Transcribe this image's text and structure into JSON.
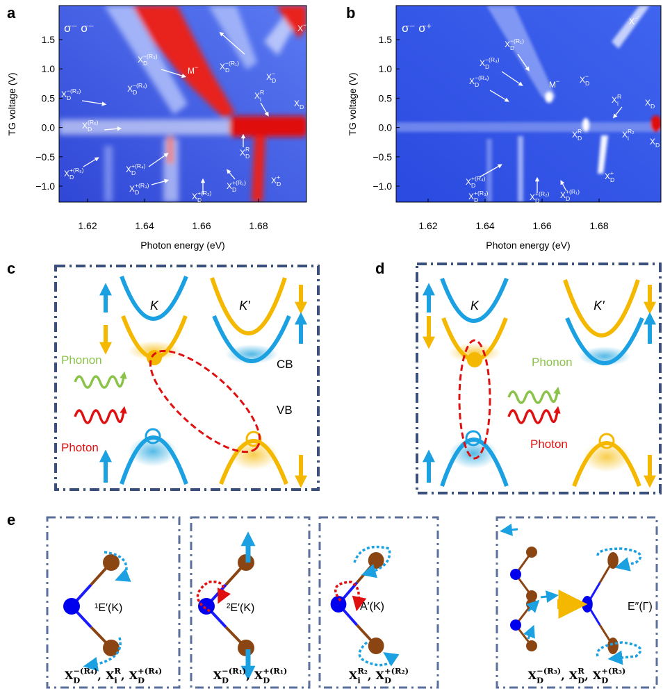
{
  "panels": {
    "a": {
      "letter": "a",
      "polarization": "σ⁻ σ⁻",
      "y_axis_title": "TG voltage (V)",
      "x_axis_title": "Photon energy (eV)",
      "x_ticks": [
        "1.62",
        "1.64",
        "1.66",
        "1.68"
      ],
      "y_ticks": [
        "1.5",
        "1.0",
        "0.5",
        "0.0",
        "−0.5",
        "−1.0"
      ],
      "labels": [
        {
          "base": "X",
          "sup": "−′"
        },
        {
          "base": "X",
          "sub": "D",
          "sup": "−(R₃)"
        },
        {
          "base": "M",
          "sup": "−"
        },
        {
          "base": "X",
          "sub": "D",
          "sup": "−(R₁)"
        },
        {
          "base": "X",
          "sub": "D",
          "sup": "−"
        },
        {
          "base": "X",
          "sub": "D",
          "sup": "−(R₄)"
        },
        {
          "base": "X",
          "sub": "D",
          "sup": "−(R₂)"
        },
        {
          "base": "X",
          "sub": "i",
          "sup": "R"
        },
        {
          "base": "X",
          "sub": "D"
        },
        {
          "base": "X",
          "sub": "D",
          "sup": "(R₅)"
        },
        {
          "base": "X",
          "sub": "D",
          "sup": "R"
        },
        {
          "base": "X",
          "sub": "D",
          "sup": "+(R₅)"
        },
        {
          "base": "X",
          "sub": "D",
          "sup": "+(R₄)"
        },
        {
          "base": "X",
          "sub": "D",
          "sup": "+(R₃)"
        },
        {
          "base": "X",
          "sub": "D",
          "sup": "+(R₂)"
        },
        {
          "base": "X",
          "sub": "D",
          "sup": "+(R₁)"
        },
        {
          "base": "X",
          "sub": "D",
          "sup": "+"
        }
      ]
    },
    "b": {
      "letter": "b",
      "polarization": "σ⁻ σ⁺",
      "y_axis_title": "TG voltage (V)",
      "x_axis_title": "Photon energy (eV)",
      "x_ticks": [
        "1.62",
        "1.64",
        "1.66",
        "1.68"
      ],
      "y_ticks": [
        "1.5",
        "1.0",
        "0.5",
        "0.0",
        "−0.5",
        "−1.0"
      ],
      "labels": [
        {
          "base": "X",
          "sup": "−′"
        },
        {
          "base": "X",
          "sub": "D",
          "sup": "−(R₁)"
        },
        {
          "base": "X",
          "sub": "D",
          "sup": "−(R₃)"
        },
        {
          "base": "X",
          "sub": "D",
          "sup": "−(R₄)"
        },
        {
          "base": "M",
          "sup": "−"
        },
        {
          "base": "X",
          "sub": "D",
          "sup": "−"
        },
        {
          "base": "X",
          "sub": "i",
          "sup": "R"
        },
        {
          "base": "X",
          "sub": "D"
        },
        {
          "base": "X",
          "sub": "D",
          "sup": "R"
        },
        {
          "base": "X",
          "sub": "i",
          "sup": "R₂"
        },
        {
          "base": "X",
          "sub": "D"
        },
        {
          "base": "X",
          "sub": "D",
          "sup": "+(R₄)"
        },
        {
          "base": "X",
          "sub": "D",
          "sup": "+"
        },
        {
          "base": "X",
          "sub": "D",
          "sup": "+(R₃)"
        },
        {
          "base": "X",
          "sub": "D",
          "sup": "+(R₂)"
        },
        {
          "base": "X",
          "sub": "D",
          "sup": "+(R₁)"
        }
      ]
    },
    "c": {
      "letter": "c",
      "valley_K": "K",
      "valley_K_prime": "K′",
      "phonon": "Phonon",
      "photon": "Photon",
      "conduction_band": "CB",
      "valence_band": "VB"
    },
    "d": {
      "letter": "d",
      "valley_K": "K",
      "valley_K_prime": "K′",
      "phonon": "Phonon",
      "photon": "Photon"
    },
    "e": {
      "letter": "e",
      "modes": [
        {
          "name": "¹E′(K)",
          "assignment": [
            {
              "base": "X",
              "sub": "D",
              "sup": "−(R₄)",
              "after": ","
            },
            {
              "base": "X",
              "sub": "i",
              "sup": "R",
              "after": ","
            },
            {
              "base": "X",
              "sub": "D",
              "sup": "+(R₄)"
            }
          ]
        },
        {
          "name": "²E′(K)",
          "assignment": [
            {
              "base": "X",
              "sub": "D",
              "sup": "−(R₁)",
              "after": ","
            },
            {
              "base": "X",
              "sub": "D",
              "sup": "+(R₁)"
            }
          ]
        },
        {
          "name": "A′(K)",
          "assignment": [
            {
              "base": "X",
              "sub": "i",
              "sup": "R₂",
              "after": ","
            },
            {
              "base": "X",
              "sub": "D",
              "sup": "+(R₂)"
            }
          ]
        },
        {
          "name": "E″(Γ)",
          "assignment": [
            {
              "base": "X",
              "sub": "D",
              "sup": "−(R₃)",
              "after": ","
            },
            {
              "base": "X",
              "sub": "D",
              "sup": "R",
              "after": ","
            },
            {
              "base": "X",
              "sub": "D",
              "sup": "+(R₃)"
            }
          ]
        }
      ]
    }
  }
}
